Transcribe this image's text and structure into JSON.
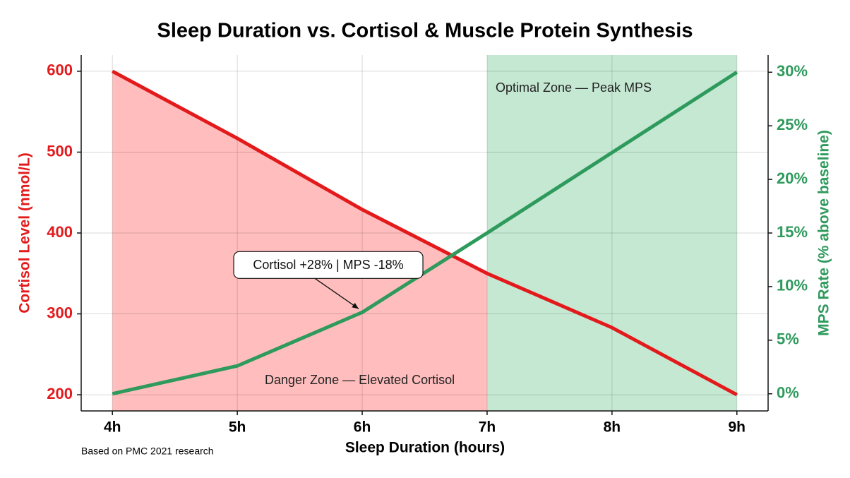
{
  "chart_data": {
    "type": "line",
    "title": "Sleep Duration vs. Cortisol & Muscle Protein Synthesis",
    "x_label": "Sleep Duration (hours)",
    "y_label": "Cortisol Level (nmol/L)",
    "y2_label": "MPS Rate (% above baseline)",
    "x": [
      4,
      5,
      6,
      7,
      8,
      9
    ],
    "xlim": [
      3.75,
      9.25
    ],
    "xticks": [
      {
        "value": 4,
        "label": "4h"
      },
      {
        "value": 5,
        "label": "5h"
      },
      {
        "value": 6,
        "label": "6h"
      },
      {
        "value": 7,
        "label": "7h"
      },
      {
        "value": 8,
        "label": "8h"
      },
      {
        "value": 9,
        "label": "9h"
      }
    ],
    "ylim": [
      180,
      620
    ],
    "yticks": [
      200,
      300,
      400,
      500,
      600
    ],
    "y2lim": [
      -1.6,
      31.6
    ],
    "y2ticks": [
      {
        "value": 0,
        "label": "0%"
      },
      {
        "value": 5,
        "label": "5%"
      },
      {
        "value": 10,
        "label": "10%"
      },
      {
        "value": 15,
        "label": "15%"
      },
      {
        "value": 20,
        "label": "20%"
      },
      {
        "value": 25,
        "label": "25%"
      },
      {
        "value": 30,
        "label": "30%"
      }
    ],
    "grid": true,
    "series": [
      {
        "name": "Cortisol",
        "color": "#e31a1c",
        "values": [
          600,
          517,
          429,
          350,
          283,
          200
        ]
      },
      {
        "name": "MPS",
        "color": "#2e9a5c",
        "axis": "y2",
        "values": [
          0,
          2.6,
          7.6,
          15,
          22.5,
          30
        ]
      }
    ],
    "zones": [
      {
        "label": "Danger Zone — Elevated Cortisol",
        "from": 4,
        "to": 7,
        "color": "#ffbdbd",
        "fill": "under"
      },
      {
        "label": "Optimal Zone — Peak MPS",
        "from": 7,
        "to": 9,
        "color": "#c5e8d2",
        "fill": "band"
      }
    ],
    "annotation": {
      "text": "Cortisol +28% | MPS -18%",
      "x": 6
    },
    "note": "Based on PMC 2021 research"
  }
}
